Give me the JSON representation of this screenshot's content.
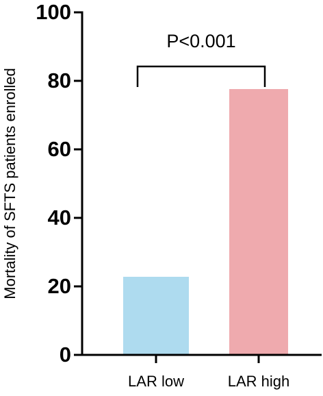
{
  "chart_data": {
    "type": "bar",
    "y_label": "Mortality of SFTS patients enrolled",
    "annotation": "P<0.001",
    "categories": [
      "LAR low",
      "LAR high"
    ],
    "values": [
      22.6,
      77.4
    ],
    "colors": [
      "#b5e4f9",
      "#f9b1b5"
    ],
    "ylim": [
      0,
      100
    ],
    "yticks": [
      0,
      20,
      40,
      60,
      80,
      100
    ]
  }
}
